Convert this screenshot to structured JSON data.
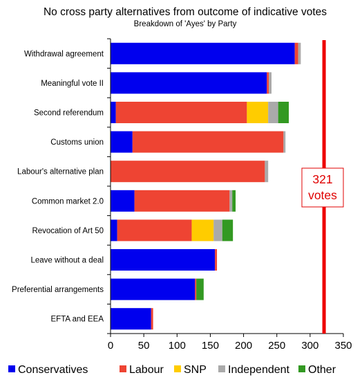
{
  "chart_data": {
    "type": "bar",
    "orientation": "horizontal",
    "stacked": true,
    "title": "No cross party alternatives from outcome of indicative votes",
    "subtitle": "Breakdown of 'Ayes' by Party",
    "categories": [
      "Withdrawal agreement",
      "Meaningful vote II",
      "Second referendum",
      "Customs union",
      "Labour's alternative plan",
      "Common market 2.0",
      "Revocation of Art 50",
      "Leave without a deal",
      "Preferential arrangements",
      "EFTA and EEA"
    ],
    "series": [
      {
        "name": "Conservatives",
        "color": "#0000ee",
        "values": [
          277,
          235,
          8,
          33,
          0,
          36,
          10,
          157,
          127,
          61
        ]
      },
      {
        "name": "Labour",
        "color": "#ee4433",
        "values": [
          5,
          3,
          197,
          227,
          232,
          143,
          112,
          3,
          2,
          3
        ]
      },
      {
        "name": "SNP",
        "color": "#ffcc00",
        "values": [
          0,
          0,
          32,
          0,
          0,
          0,
          33,
          0,
          0,
          0
        ]
      },
      {
        "name": "Independent",
        "color": "#aaaaaa",
        "values": [
          4,
          4,
          15,
          3,
          5,
          4,
          13,
          0,
          0,
          0
        ]
      },
      {
        "name": "Other",
        "color": "#339922",
        "values": [
          0,
          0,
          16,
          0,
          0,
          5,
          16,
          0,
          11,
          0
        ]
      }
    ],
    "xlim": [
      0,
      350
    ],
    "xticks": [
      "0",
      "50",
      "100",
      "150",
      "200",
      "250",
      "300",
      "350"
    ],
    "xlabel": "",
    "ylabel": "",
    "grid": false,
    "legend_position": "bottom",
    "reference_line": {
      "value": 321,
      "label_line1": "321",
      "label_line2": "votes",
      "color": "#ee0000"
    }
  }
}
